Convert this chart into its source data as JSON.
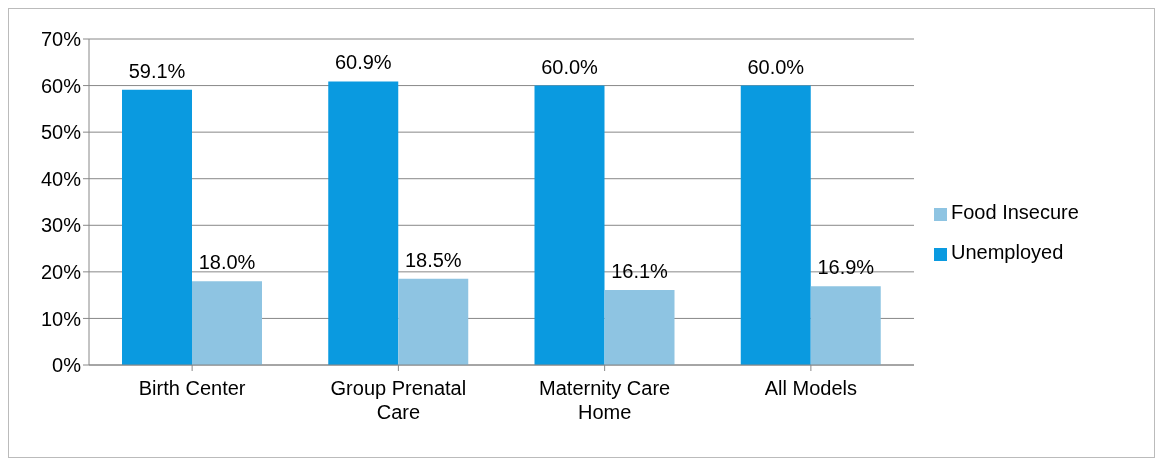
{
  "chart_data": {
    "type": "bar",
    "categories": [
      "Birth Center",
      "Group Prenatal Care",
      "Maternity Care Home",
      "All Models"
    ],
    "series": [
      {
        "name": "Unemployed",
        "color": "#0a9ae0",
        "values": [
          59.1,
          60.9,
          60.0,
          60.0
        ],
        "value_labels": [
          "59.1%",
          "60.9%",
          "60.0%",
          "60.0%"
        ]
      },
      {
        "name": "Food Insecure",
        "color": "#8ec4e2",
        "values": [
          18.0,
          18.5,
          16.1,
          16.9
        ],
        "value_labels": [
          "18.0%",
          "18.5%",
          "16.1%",
          "16.9%"
        ]
      }
    ],
    "ylim": [
      0,
      70
    ],
    "yticks": [
      {
        "value": 0,
        "label": "0%"
      },
      {
        "value": 10,
        "label": "10%"
      },
      {
        "value": 20,
        "label": "20%"
      },
      {
        "value": 30,
        "label": "30%"
      },
      {
        "value": 40,
        "label": "40%"
      },
      {
        "value": 50,
        "label": "50%"
      },
      {
        "value": 60,
        "label": "60%"
      },
      {
        "value": 70,
        "label": "70%"
      }
    ],
    "grid": "y",
    "legend": "right"
  }
}
